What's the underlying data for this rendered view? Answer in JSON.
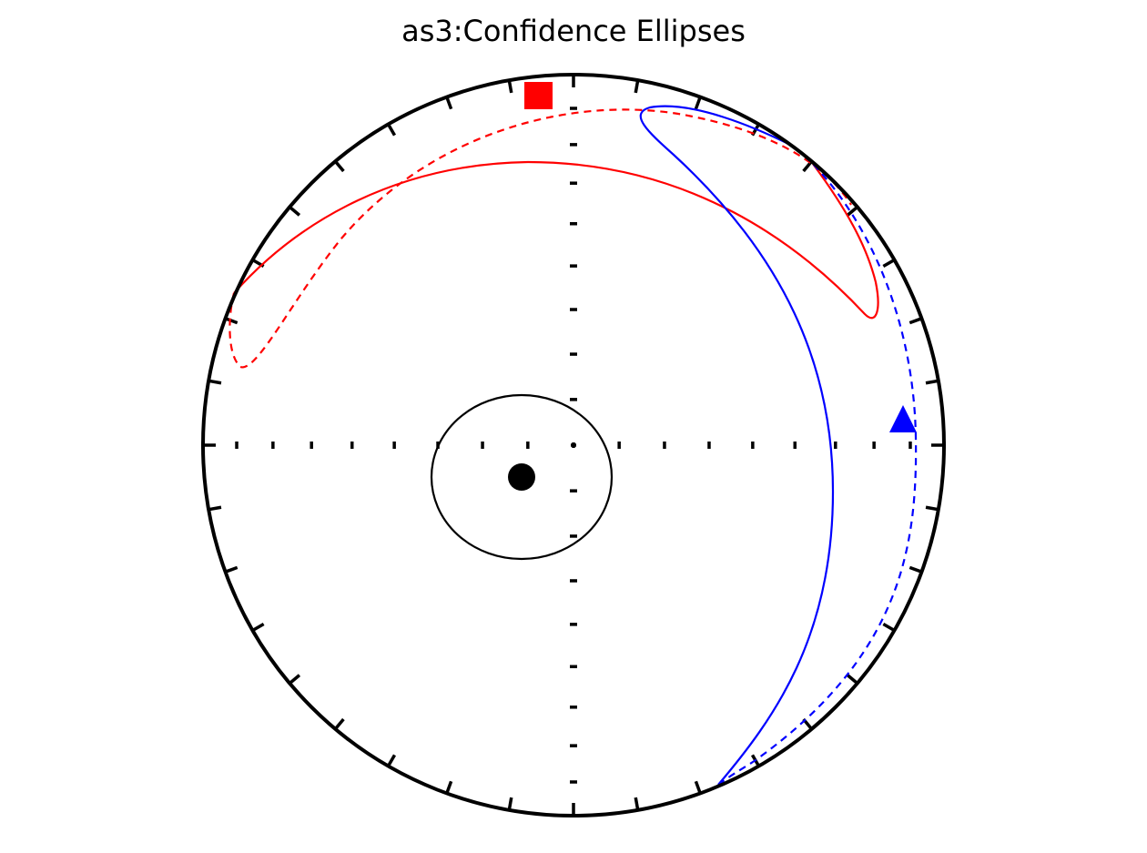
{
  "chart_data": {
    "type": "scatter",
    "projection": "equal-area stereonet (lower hemisphere)",
    "title": "as3:Confidence Ellipses",
    "primitive_ticks_deg": 10,
    "axis_ticks_deg": 10,
    "colors": {
      "axis1": "#000000",
      "axis2": "#ff0000",
      "axis3": "#0000ff",
      "frame": "#000000"
    },
    "points": [
      {
        "marker": "circle",
        "color": "#000000",
        "dec": 240,
        "inc": 83
      },
      {
        "marker": "square",
        "color": "#ff0000",
        "dec": 355,
        "inc": 1
      },
      {
        "marker": "triangle",
        "color": "#0000ff",
        "dec": 87,
        "inc": 3
      }
    ]
  }
}
